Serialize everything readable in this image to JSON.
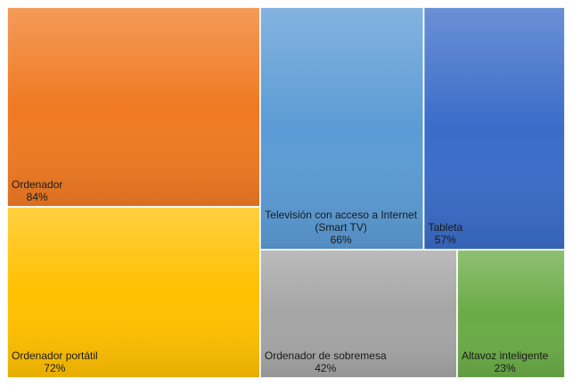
{
  "chart_data": {
    "type": "treemap",
    "categories": [
      "Ordenador",
      "Ordenador portátil",
      "Televisión con acceso a Internet (Smart TV)",
      "Tableta",
      "Ordenador de sobremesa",
      "Altavoz inteligente"
    ],
    "values": [
      84,
      72,
      66,
      57,
      42,
      23
    ],
    "value_labels": [
      "84%",
      "72%",
      "66%",
      "57%",
      "42%",
      "23%"
    ],
    "colors": [
      "#f07a22",
      "#ffc000",
      "#5b9bd5",
      "#3a6cc8",
      "#a5a5a5",
      "#6aab46"
    ]
  }
}
